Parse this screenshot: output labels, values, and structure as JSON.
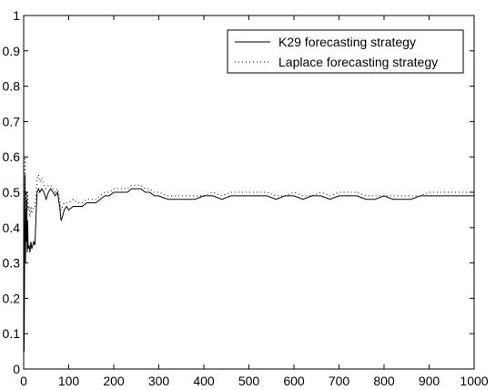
{
  "chart_data": {
    "type": "line",
    "title": "",
    "xlabel": "",
    "ylabel": "",
    "xlim": [
      0,
      1000
    ],
    "ylim": [
      0,
      1
    ],
    "x_ticks": [
      0,
      100,
      200,
      300,
      400,
      500,
      600,
      700,
      800,
      900,
      1000
    ],
    "x_tick_labels": [
      "0",
      "100",
      "200",
      "300",
      "400",
      "500",
      "600",
      "700",
      "800",
      "900",
      "1000"
    ],
    "y_ticks": [
      0,
      0.1,
      0.2,
      0.3,
      0.4,
      0.5,
      0.6,
      0.7,
      0.8,
      0.9,
      1
    ],
    "y_tick_labels": [
      "0",
      "0.1",
      "0.2",
      "0.3",
      "0.4",
      "0.5",
      "0.6",
      "0.7",
      "0.8",
      "0.9",
      "1"
    ],
    "grid": false,
    "legend_position": "top-right",
    "series": [
      {
        "name": "K29 forecasting strategy",
        "style": "solid",
        "color": "#000000",
        "x": [
          0,
          1,
          2,
          3,
          4,
          5,
          6,
          7,
          8,
          9,
          10,
          12,
          14,
          16,
          18,
          20,
          22,
          25,
          28,
          30,
          33,
          36,
          40,
          45,
          50,
          55,
          60,
          65,
          70,
          75,
          80,
          83,
          86,
          90,
          95,
          100,
          110,
          120,
          130,
          140,
          150,
          160,
          170,
          180,
          190,
          200,
          210,
          220,
          230,
          240,
          250,
          260,
          270,
          280,
          290,
          300,
          320,
          340,
          360,
          380,
          400,
          420,
          440,
          460,
          480,
          500,
          520,
          540,
          560,
          580,
          600,
          620,
          640,
          660,
          680,
          700,
          720,
          740,
          760,
          780,
          800,
          820,
          840,
          860,
          880,
          900,
          920,
          940,
          960,
          980,
          1000
        ],
        "y": [
          0.5,
          0.05,
          0.27,
          0.55,
          0.3,
          0.45,
          0.36,
          0.48,
          0.33,
          0.42,
          0.34,
          0.35,
          0.33,
          0.36,
          0.34,
          0.35,
          0.36,
          0.35,
          0.45,
          0.5,
          0.51,
          0.5,
          0.51,
          0.5,
          0.48,
          0.5,
          0.51,
          0.5,
          0.49,
          0.5,
          0.46,
          0.42,
          0.43,
          0.45,
          0.46,
          0.45,
          0.46,
          0.46,
          0.46,
          0.47,
          0.47,
          0.47,
          0.48,
          0.49,
          0.49,
          0.5,
          0.5,
          0.5,
          0.5,
          0.51,
          0.51,
          0.51,
          0.5,
          0.5,
          0.49,
          0.49,
          0.48,
          0.48,
          0.48,
          0.48,
          0.49,
          0.49,
          0.48,
          0.49,
          0.49,
          0.49,
          0.49,
          0.49,
          0.48,
          0.49,
          0.49,
          0.48,
          0.49,
          0.49,
          0.48,
          0.49,
          0.49,
          0.49,
          0.48,
          0.48,
          0.49,
          0.48,
          0.48,
          0.48,
          0.49,
          0.49,
          0.49,
          0.49,
          0.49,
          0.49,
          0.49
        ]
      },
      {
        "name": "Laplace forecasting strategy",
        "style": "dotted",
        "color": "#000000",
        "x": [
          0,
          1,
          2,
          3,
          4,
          5,
          6,
          7,
          8,
          9,
          10,
          12,
          14,
          16,
          18,
          20,
          22,
          25,
          28,
          30,
          33,
          36,
          40,
          45,
          50,
          55,
          60,
          65,
          70,
          75,
          80,
          83,
          86,
          90,
          95,
          100,
          110,
          120,
          130,
          140,
          150,
          160,
          170,
          180,
          190,
          200,
          210,
          220,
          230,
          240,
          250,
          260,
          270,
          280,
          290,
          300,
          320,
          340,
          360,
          380,
          400,
          420,
          440,
          460,
          480,
          500,
          520,
          540,
          560,
          580,
          600,
          620,
          640,
          660,
          680,
          700,
          720,
          740,
          760,
          780,
          800,
          820,
          840,
          860,
          880,
          900,
          920,
          940,
          960,
          980,
          1000
        ],
        "y": [
          0.5,
          0.33,
          0.5,
          0.6,
          0.4,
          0.5,
          0.43,
          0.5,
          0.45,
          0.5,
          0.45,
          0.46,
          0.43,
          0.46,
          0.44,
          0.45,
          0.46,
          0.46,
          0.5,
          0.54,
          0.55,
          0.53,
          0.54,
          0.52,
          0.51,
          0.52,
          0.52,
          0.51,
          0.5,
          0.51,
          0.48,
          0.45,
          0.46,
          0.47,
          0.47,
          0.47,
          0.48,
          0.47,
          0.47,
          0.48,
          0.48,
          0.48,
          0.49,
          0.5,
          0.5,
          0.51,
          0.51,
          0.51,
          0.51,
          0.52,
          0.52,
          0.52,
          0.51,
          0.51,
          0.5,
          0.5,
          0.49,
          0.49,
          0.49,
          0.49,
          0.49,
          0.5,
          0.49,
          0.5,
          0.5,
          0.5,
          0.5,
          0.5,
          0.49,
          0.49,
          0.5,
          0.49,
          0.49,
          0.5,
          0.49,
          0.5,
          0.5,
          0.5,
          0.49,
          0.49,
          0.49,
          0.49,
          0.49,
          0.49,
          0.49,
          0.5,
          0.5,
          0.5,
          0.5,
          0.5,
          0.5
        ]
      }
    ]
  }
}
